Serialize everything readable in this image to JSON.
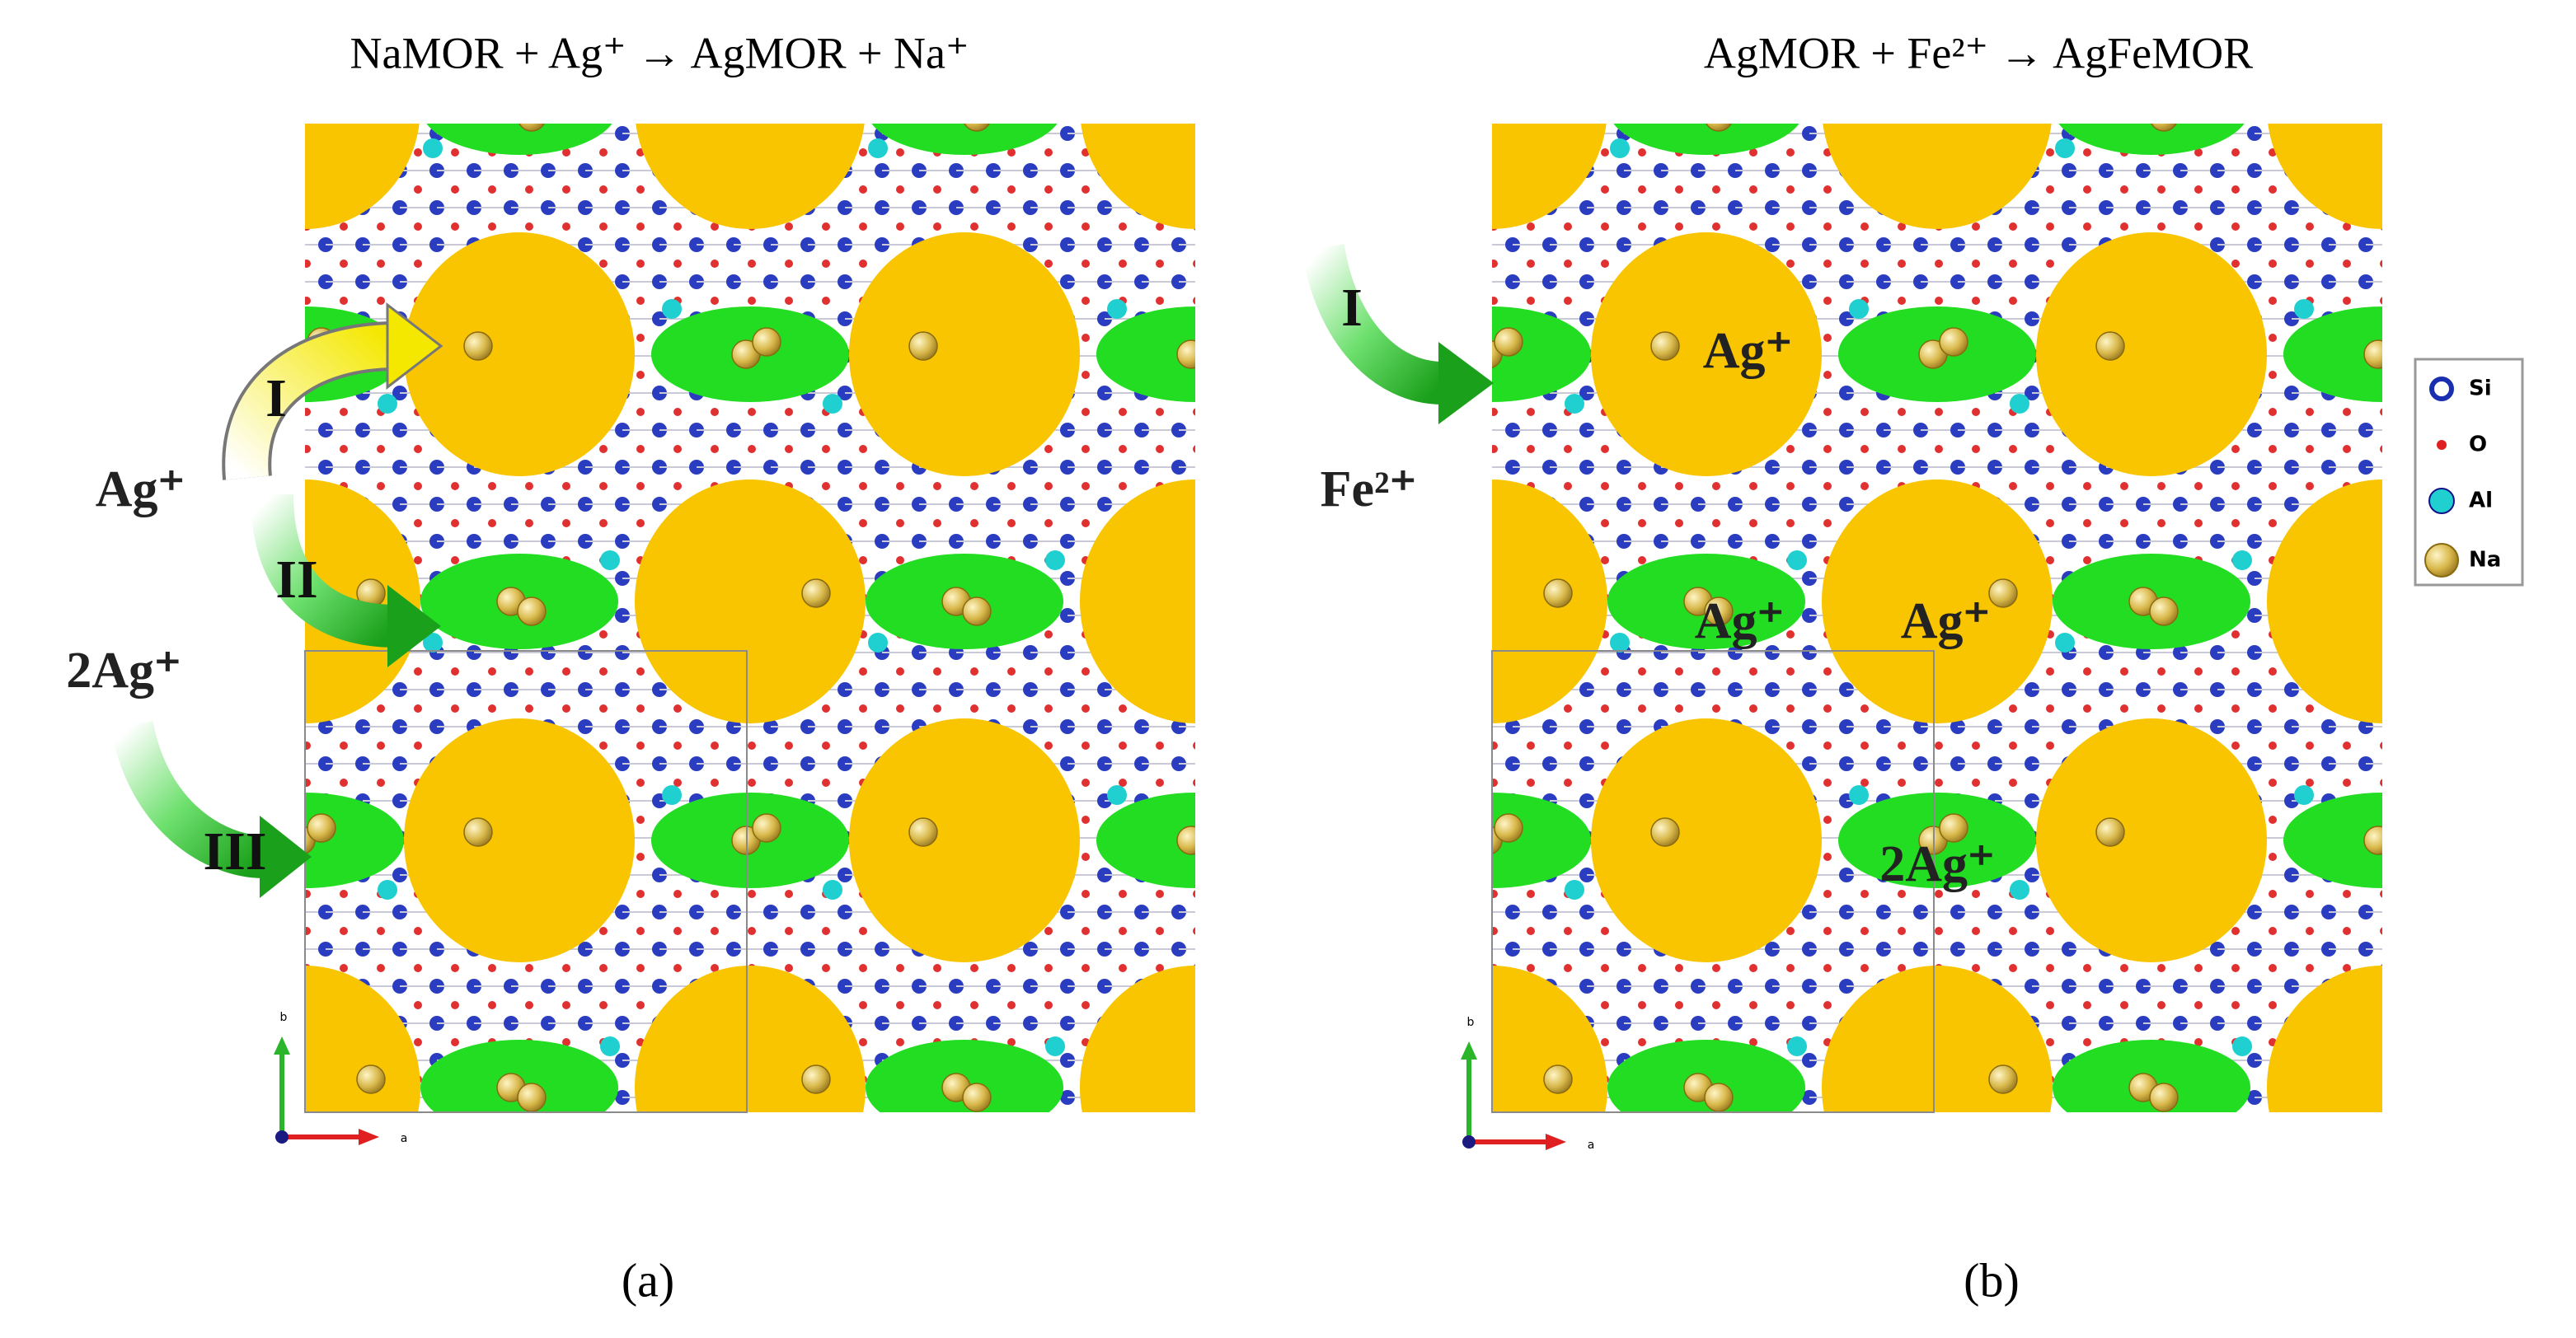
{
  "panels": [
    {
      "title": "NaMOR + Ag⁺ → AgMOR + Na⁺",
      "labels": [
        "Ag⁺",
        "2Ag⁺",
        "I",
        "II",
        "III"
      ],
      "axes": [
        "b",
        "a"
      ],
      "caption": "(a)"
    },
    {
      "title": "AgMOR + Fe²⁺ → AgFeMOR",
      "labels": [
        "I",
        "Fe²⁺",
        "Ag⁺",
        "Ag⁺",
        "Ag⁺",
        "2Ag⁺"
      ],
      "axes": [
        "b",
        "a"
      ],
      "caption": "(b)"
    }
  ],
  "legend": [
    "Si",
    "O",
    "Al",
    "Na"
  ]
}
